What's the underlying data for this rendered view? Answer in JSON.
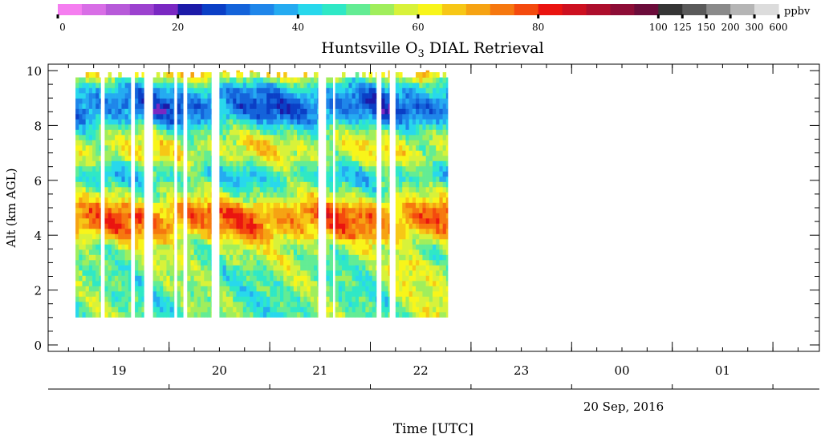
{
  "colorbar": {
    "unit": "ppbv",
    "ticks": [
      {
        "label": "0",
        "value": 0
      },
      {
        "label": "20",
        "value": 20
      },
      {
        "label": "40",
        "value": 40
      },
      {
        "label": "60",
        "value": 60
      },
      {
        "label": "80",
        "value": 80
      },
      {
        "label": "100",
        "value": 100
      },
      {
        "label": "125",
        "value": 125
      },
      {
        "label": "150",
        "value": 150
      },
      {
        "label": "200",
        "value": 200
      },
      {
        "label": "300",
        "value": 300
      },
      {
        "label": "600",
        "value": 600
      }
    ],
    "colors": [
      "#f57ef0",
      "#d86ee6",
      "#b75ad9",
      "#9c42cf",
      "#7a28c2",
      "#1c1aa8",
      "#0b3fc6",
      "#1463da",
      "#1f86ea",
      "#25abf1",
      "#28d8ec",
      "#2fe8c6",
      "#63ec94",
      "#a0ee5c",
      "#d8f23a",
      "#f8f51a",
      "#f7c716",
      "#f6a313",
      "#f6780f",
      "#f44a0e",
      "#ea1410",
      "#cd1020",
      "#ad0e2c",
      "#8d0d36",
      "#6b0c3a",
      "#353535",
      "#5a5a5a",
      "#8a8a8a",
      "#b5b5b5",
      "#dcdcdc"
    ]
  },
  "chart_data": {
    "type": "heatmap",
    "title_prefix": "Huntsville O",
    "title_subscript": "3",
    "title_suffix": " DIAL Retrieval",
    "ylabel": "Alt (km AGL)",
    "xlabel": "Time [UTC]",
    "date_label": "20 Sep, 2016",
    "ylim": [
      0,
      10
    ],
    "y_ticks": [
      "0",
      "2",
      "4",
      "6",
      "8",
      "10"
    ],
    "xlim_hours": [
      18.5,
      25.75
    ],
    "x_ticks": [
      {
        "label": "19",
        "hour": 19
      },
      {
        "label": "20",
        "hour": 20
      },
      {
        "label": "21",
        "hour": 21
      },
      {
        "label": "22",
        "hour": 22
      },
      {
        "label": "23",
        "hour": 23
      },
      {
        "label": "00",
        "hour": 24
      },
      {
        "label": "01",
        "hour": 25
      }
    ],
    "data_segments_hours": [
      [
        18.57,
        18.82
      ],
      [
        18.86,
        19.12
      ],
      [
        19.16,
        19.25
      ],
      [
        19.34,
        19.55
      ],
      [
        19.58,
        19.64
      ],
      [
        19.68,
        19.92
      ],
      [
        20.0,
        20.98
      ],
      [
        21.06,
        21.13
      ],
      [
        21.15,
        21.56
      ],
      [
        21.61,
        21.69
      ],
      [
        21.75,
        22.27
      ]
    ],
    "altitude_range_km": [
      1.0,
      10.0
    ],
    "mean_profile_ppbv": {
      "altitude_km": [
        1.0,
        1.5,
        2.0,
        2.5,
        3.0,
        3.5,
        4.0,
        4.3,
        4.6,
        4.9,
        5.2,
        5.6,
        6.0,
        6.3,
        6.7,
        7.2,
        7.7,
        8.1,
        8.5,
        8.9,
        9.3,
        9.7,
        10.0
      ],
      "ozone_ppbv": [
        50,
        49,
        50,
        51,
        53,
        56,
        69,
        74,
        74,
        71,
        60,
        50,
        43,
        47,
        58,
        60,
        50,
        38,
        29,
        33,
        40,
        60,
        72
      ]
    }
  }
}
